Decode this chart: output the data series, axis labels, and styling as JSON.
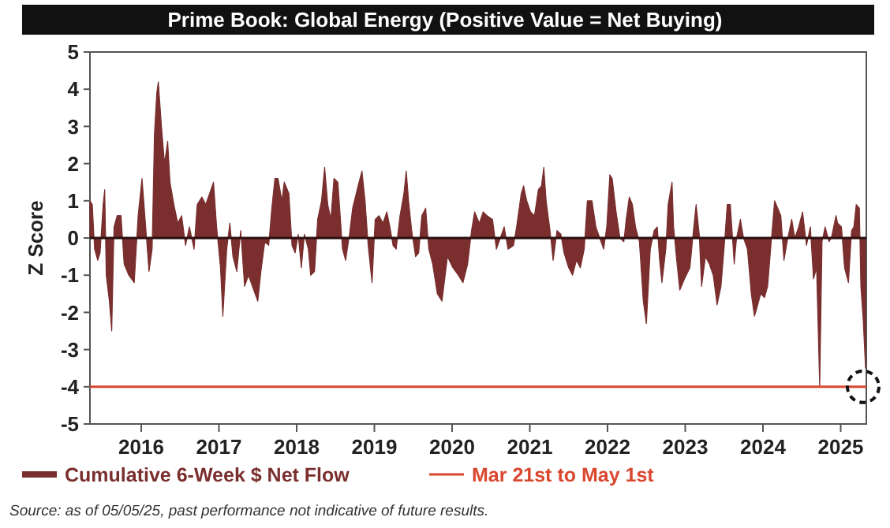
{
  "chart_data": {
    "type": "area",
    "title": "Prime Book: Global Energy (Positive Value = Net Buying)",
    "ylabel": "Z Score",
    "xlim": [
      2015.34,
      2025.33
    ],
    "xticks": [
      2016,
      2017,
      2018,
      2019,
      2020,
      2021,
      2022,
      2023,
      2024,
      2025
    ],
    "ylim": [
      -5,
      5
    ],
    "yticks": [
      -5,
      -4,
      -3,
      -2,
      -1,
      0,
      1,
      2,
      3,
      4,
      5
    ],
    "grid": false,
    "legend": "bottom",
    "series": [
      {
        "name": "Cumulative 6-Week $ Net Flow",
        "color": "#7a2e2e",
        "x": [
          2015.34,
          2015.37,
          2015.4,
          2015.44,
          2015.47,
          2015.51,
          2015.53,
          2015.55,
          2015.59,
          2015.62,
          2015.65,
          2015.69,
          2015.74,
          2015.78,
          2015.84,
          2015.91,
          2015.96,
          2016.01,
          2016.05,
          2016.1,
          2016.14,
          2016.17,
          2016.2,
          2016.22,
          2016.26,
          2016.3,
          2016.34,
          2016.37,
          2016.42,
          2016.47,
          2016.52,
          2016.57,
          2016.62,
          2016.68,
          2016.72,
          2016.78,
          2016.83,
          2016.88,
          2016.93,
          2016.97,
          2017.02,
          2017.05,
          2017.1,
          2017.14,
          2017.18,
          2017.23,
          2017.28,
          2017.33,
          2017.38,
          2017.43,
          2017.5,
          2017.54,
          2017.59,
          2017.64,
          2017.68,
          2017.72,
          2017.76,
          2017.81,
          2017.84,
          2017.9,
          2017.94,
          2017.98,
          2018.02,
          2018.06,
          2018.1,
          2018.15,
          2018.18,
          2018.23,
          2018.27,
          2018.32,
          2018.36,
          2018.4,
          2018.44,
          2018.48,
          2018.53,
          2018.59,
          2018.63,
          2018.68,
          2018.72,
          2018.79,
          2018.84,
          2018.88,
          2018.92,
          2018.97,
          2019.01,
          2019.06,
          2019.11,
          2019.16,
          2019.2,
          2019.24,
          2019.28,
          2019.33,
          2019.38,
          2019.41,
          2019.44,
          2019.48,
          2019.53,
          2019.57,
          2019.61,
          2019.66,
          2019.7,
          2019.75,
          2019.81,
          2019.87,
          2019.94,
          2020.01,
          2020.08,
          2020.14,
          2020.2,
          2020.25,
          2020.29,
          2020.35,
          2020.4,
          2020.45,
          2020.52,
          2020.57,
          2020.62,
          2020.67,
          2020.72,
          2020.79,
          2020.83,
          2020.89,
          2020.92,
          2020.96,
          2021.01,
          2021.06,
          2021.11,
          2021.15,
          2021.18,
          2021.21,
          2021.26,
          2021.3,
          2021.35,
          2021.4,
          2021.44,
          2021.5,
          2021.55,
          2021.6,
          2021.65,
          2021.7,
          2021.74,
          2021.8,
          2021.85,
          2021.9,
          2021.95,
          2021.99,
          2022.03,
          2022.06,
          2022.11,
          2022.16,
          2022.21,
          2022.24,
          2022.28,
          2022.32,
          2022.36,
          2022.41,
          2022.46,
          2022.5,
          2022.55,
          2022.6,
          2022.64,
          2022.67,
          2022.7,
          2022.75,
          2022.78,
          2022.83,
          2022.85,
          2022.89,
          2022.93,
          2022.99,
          2023.06,
          2023.11,
          2023.14,
          2023.18,
          2023.21,
          2023.26,
          2023.31,
          2023.36,
          2023.41,
          2023.46,
          2023.51,
          2023.54,
          2023.58,
          2023.63,
          2023.66,
          2023.71,
          2023.75,
          2023.8,
          2023.85,
          2023.89,
          2023.92,
          2023.97,
          2024.02,
          2024.06,
          2024.11,
          2024.15,
          2024.19,
          2024.23,
          2024.27,
          2024.32,
          2024.37,
          2024.41,
          2024.46,
          2024.51,
          2024.56,
          2024.61,
          2024.65,
          2024.69,
          2024.73,
          2024.76,
          2024.8,
          2024.85,
          2024.88,
          2024.94,
          2024.96,
          2025.01,
          2025.05,
          2025.1,
          2025.14,
          2025.17,
          2025.2,
          2025.24,
          2025.26,
          2025.29,
          2025.32
        ],
        "values": [
          1.0,
          0.9,
          -0.3,
          -0.6,
          -0.4,
          0.9,
          1.3,
          -1.0,
          -1.7,
          -2.5,
          0.3,
          0.6,
          0.6,
          -0.7,
          -1.0,
          -1.2,
          0.6,
          1.6,
          0.5,
          -0.9,
          -0.3,
          2.8,
          3.9,
          4.2,
          3.0,
          2.0,
          2.6,
          1.5,
          0.9,
          0.4,
          0.6,
          -0.2,
          0.3,
          -0.3,
          0.9,
          1.1,
          0.9,
          1.2,
          1.5,
          0.3,
          -0.8,
          -2.1,
          -0.3,
          0.4,
          -0.5,
          -0.9,
          0.2,
          -1.3,
          -1.0,
          -1.3,
          -1.7,
          -0.9,
          -0.1,
          -0.2,
          0.8,
          1.6,
          1.6,
          1.0,
          1.5,
          1.2,
          -0.2,
          -0.4,
          0.1,
          -0.8,
          0.1,
          -0.3,
          -1.0,
          -0.9,
          0.5,
          1.0,
          1.9,
          0.9,
          0.5,
          1.6,
          1.5,
          -0.3,
          -0.6,
          0.1,
          0.8,
          1.4,
          1.8,
          1.0,
          -0.2,
          -1.2,
          0.5,
          0.6,
          0.4,
          0.7,
          0.3,
          -0.2,
          -0.3,
          0.6,
          1.2,
          1.8,
          1.0,
          0.2,
          -0.5,
          -0.4,
          0.6,
          0.8,
          -0.3,
          -0.7,
          -1.5,
          -1.7,
          -0.5,
          -0.8,
          -1.0,
          -1.2,
          -0.7,
          0.2,
          0.7,
          0.4,
          0.7,
          0.6,
          0.5,
          -0.3,
          0.0,
          0.3,
          -0.3,
          -0.2,
          0.3,
          1.2,
          1.4,
          1.0,
          0.7,
          0.6,
          1.3,
          1.4,
          1.9,
          1.0,
          0.2,
          -0.6,
          0.2,
          0.1,
          -0.4,
          -0.8,
          -1.0,
          -0.6,
          -0.8,
          -0.3,
          1.0,
          1.0,
          0.3,
          0.0,
          -0.3,
          0.3,
          1.7,
          1.6,
          0.7,
          0.0,
          -0.1,
          0.5,
          1.1,
          0.9,
          0.3,
          -0.1,
          -1.7,
          -2.3,
          -0.3,
          0.2,
          0.3,
          -0.6,
          -1.2,
          -0.3,
          0.9,
          1.5,
          0.3,
          -0.6,
          -1.4,
          -1.1,
          -0.8,
          0.3,
          0.9,
          0.1,
          -1.3,
          -0.5,
          -0.7,
          -1.0,
          -1.8,
          -1.3,
          0.0,
          0.9,
          0.9,
          -0.7,
          0.0,
          0.5,
          0.0,
          -0.3,
          -1.5,
          -2.1,
          -1.9,
          -1.5,
          -1.6,
          -1.3,
          0.0,
          1.0,
          0.8,
          0.6,
          -0.6,
          0.0,
          0.5,
          0.0,
          0.3,
          0.7,
          -0.2,
          0.3,
          -1.1,
          -0.8,
          -4.0,
          -0.1,
          0.3,
          -0.1,
          0.0,
          0.6,
          0.4,
          0.3,
          -0.8,
          -1.2,
          0.2,
          0.3,
          0.9,
          0.8,
          -1.3,
          -2.2,
          -3.5
        ]
      }
    ],
    "ref_lines": [
      {
        "axis": "y",
        "value": -4,
        "label": "Mar 21st to May 1st",
        "color": "#d9472f"
      }
    ],
    "annotations": [
      "Source: as of 05/05/25, past performance not indicative of future results."
    ]
  }
}
